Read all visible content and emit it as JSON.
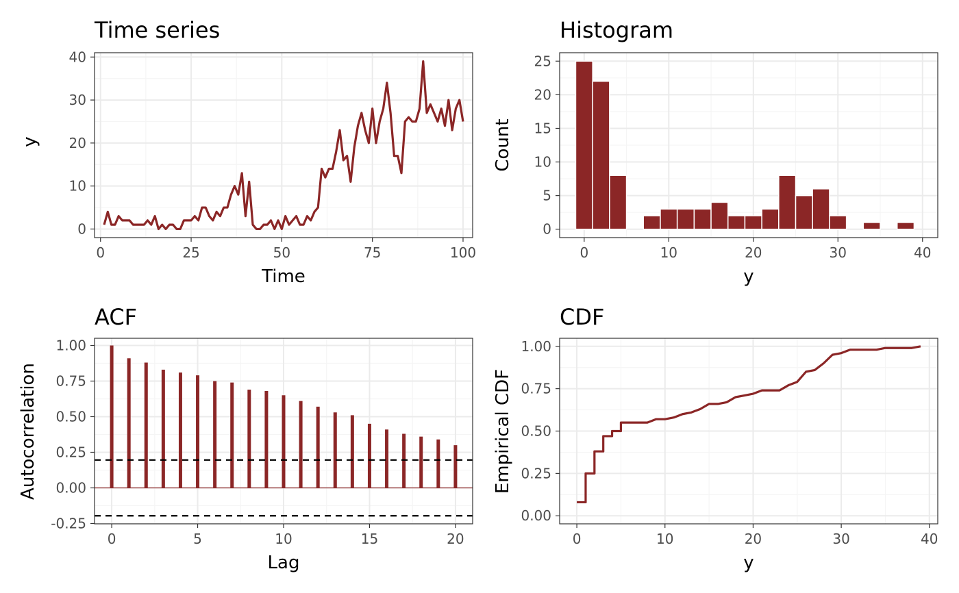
{
  "colors": {
    "series": "#8b2626",
    "grid_major": "#ebebeb",
    "grid_minor": "#f5f5f5",
    "border": "#333333",
    "tick_text": "#4d4d4d",
    "dashed": "#000000"
  },
  "chart_data": [
    {
      "type": "line",
      "title": "Time series",
      "xlabel": "Time",
      "ylabel": "y",
      "xlim": [
        0,
        100
      ],
      "ylim": [
        0,
        40
      ],
      "xticks": [
        0,
        25,
        50,
        75,
        100
      ],
      "yticks": [
        0,
        10,
        20,
        30,
        40
      ],
      "x": [
        1,
        2,
        3,
        4,
        5,
        6,
        7,
        8,
        9,
        10,
        11,
        12,
        13,
        14,
        15,
        16,
        17,
        18,
        19,
        20,
        21,
        22,
        23,
        24,
        25,
        26,
        27,
        28,
        29,
        30,
        31,
        32,
        33,
        34,
        35,
        36,
        37,
        38,
        39,
        40,
        41,
        42,
        43,
        44,
        45,
        46,
        47,
        48,
        49,
        50,
        51,
        52,
        53,
        54,
        55,
        56,
        57,
        58,
        59,
        60,
        61,
        62,
        63,
        64,
        65,
        66,
        67,
        68,
        69,
        70,
        71,
        72,
        73,
        74,
        75,
        76,
        77,
        78,
        79,
        80,
        81,
        82,
        83,
        84,
        85,
        86,
        87,
        88,
        89,
        90,
        91,
        92,
        93,
        94,
        95,
        96,
        97,
        98,
        99,
        100
      ],
      "values": [
        1,
        4,
        1,
        1,
        3,
        2,
        2,
        2,
        1,
        1,
        1,
        1,
        2,
        1,
        3,
        0,
        1,
        0,
        1,
        1,
        0,
        0,
        2,
        2,
        2,
        3,
        2,
        5,
        5,
        3,
        2,
        4,
        3,
        5,
        5,
        8,
        10,
        8,
        13,
        3,
        11,
        1,
        0,
        0,
        1,
        1,
        2,
        0,
        2,
        0,
        3,
        1,
        2,
        3,
        1,
        1,
        3,
        2,
        4,
        5,
        14,
        12,
        14,
        14,
        18,
        23,
        16,
        17,
        11,
        19,
        24,
        27,
        23,
        20,
        28,
        20,
        25,
        28,
        34,
        27,
        17,
        17,
        13,
        25,
        26,
        25,
        25,
        28,
        39,
        27,
        29,
        27,
        25,
        28,
        24,
        30,
        23,
        28,
        30,
        25
      ],
      "grid": true
    },
    {
      "type": "bar",
      "title": "Histogram",
      "xlabel": "y",
      "ylabel": "Count",
      "xlim": [
        0,
        40
      ],
      "ylim": [
        0,
        25
      ],
      "xticks": [
        0,
        10,
        20,
        30,
        40
      ],
      "yticks": [
        0,
        5,
        10,
        15,
        20,
        25
      ],
      "bin_width": 2,
      "bin_centers": [
        0,
        2,
        4,
        6,
        8,
        10,
        12,
        14,
        16,
        18,
        20,
        22,
        24,
        26,
        28,
        30,
        32,
        34,
        36,
        38
      ],
      "values": [
        25,
        22,
        8,
        0,
        2,
        3,
        3,
        3,
        4,
        2,
        2,
        3,
        8,
        5,
        6,
        2,
        0,
        1,
        0,
        1
      ],
      "grid": true
    },
    {
      "type": "bar",
      "title": "ACF",
      "xlabel": "Lag",
      "ylabel": "Autocorrelation",
      "xlim": [
        0,
        20
      ],
      "ylim": [
        -0.25,
        1.0
      ],
      "xticks": [
        0,
        5,
        10,
        15,
        20
      ],
      "yticks": [
        -0.25,
        0.0,
        0.25,
        0.5,
        0.75,
        1.0
      ],
      "ytick_labels": [
        "-0.25",
        "0.00",
        "0.25",
        "0.50",
        "0.75",
        "1.00"
      ],
      "lags": [
        0,
        1,
        2,
        3,
        4,
        5,
        6,
        7,
        8,
        9,
        10,
        11,
        12,
        13,
        14,
        15,
        16,
        17,
        18,
        19,
        20
      ],
      "values": [
        1.0,
        0.91,
        0.88,
        0.83,
        0.81,
        0.79,
        0.75,
        0.74,
        0.69,
        0.68,
        0.65,
        0.61,
        0.57,
        0.53,
        0.51,
        0.45,
        0.41,
        0.38,
        0.36,
        0.34,
        0.3
      ],
      "confidence_bounds": [
        0.196,
        -0.196
      ],
      "grid": true
    },
    {
      "type": "line",
      "title": "CDF",
      "xlabel": "y",
      "ylabel": "Empirical CDF",
      "xlim": [
        0,
        40
      ],
      "ylim": [
        0,
        1
      ],
      "xticks": [
        0,
        10,
        20,
        30,
        40
      ],
      "yticks": [
        0,
        0.25,
        0.5,
        0.75,
        1.0
      ],
      "ytick_labels": [
        "0.00",
        "0.25",
        "0.50",
        "0.75",
        "1.00"
      ],
      "x": [
        0,
        1,
        1,
        2,
        2,
        3,
        3,
        4,
        4,
        5,
        5,
        6,
        7,
        8,
        9,
        10,
        11,
        12,
        13,
        14,
        15,
        16,
        17,
        18,
        19,
        20,
        21,
        22,
        23,
        24,
        25,
        26,
        27,
        28,
        29,
        30,
        31,
        32,
        33,
        34,
        35,
        36,
        37,
        38,
        39
      ],
      "values": [
        0.08,
        0.08,
        0.25,
        0.25,
        0.38,
        0.38,
        0.47,
        0.47,
        0.5,
        0.5,
        0.55,
        0.55,
        0.55,
        0.55,
        0.57,
        0.57,
        0.58,
        0.6,
        0.61,
        0.63,
        0.66,
        0.66,
        0.67,
        0.7,
        0.71,
        0.72,
        0.74,
        0.74,
        0.74,
        0.77,
        0.79,
        0.85,
        0.86,
        0.9,
        0.95,
        0.96,
        0.98,
        0.98,
        0.98,
        0.98,
        0.99,
        0.99,
        0.99,
        0.99,
        1.0
      ],
      "grid": true
    }
  ]
}
